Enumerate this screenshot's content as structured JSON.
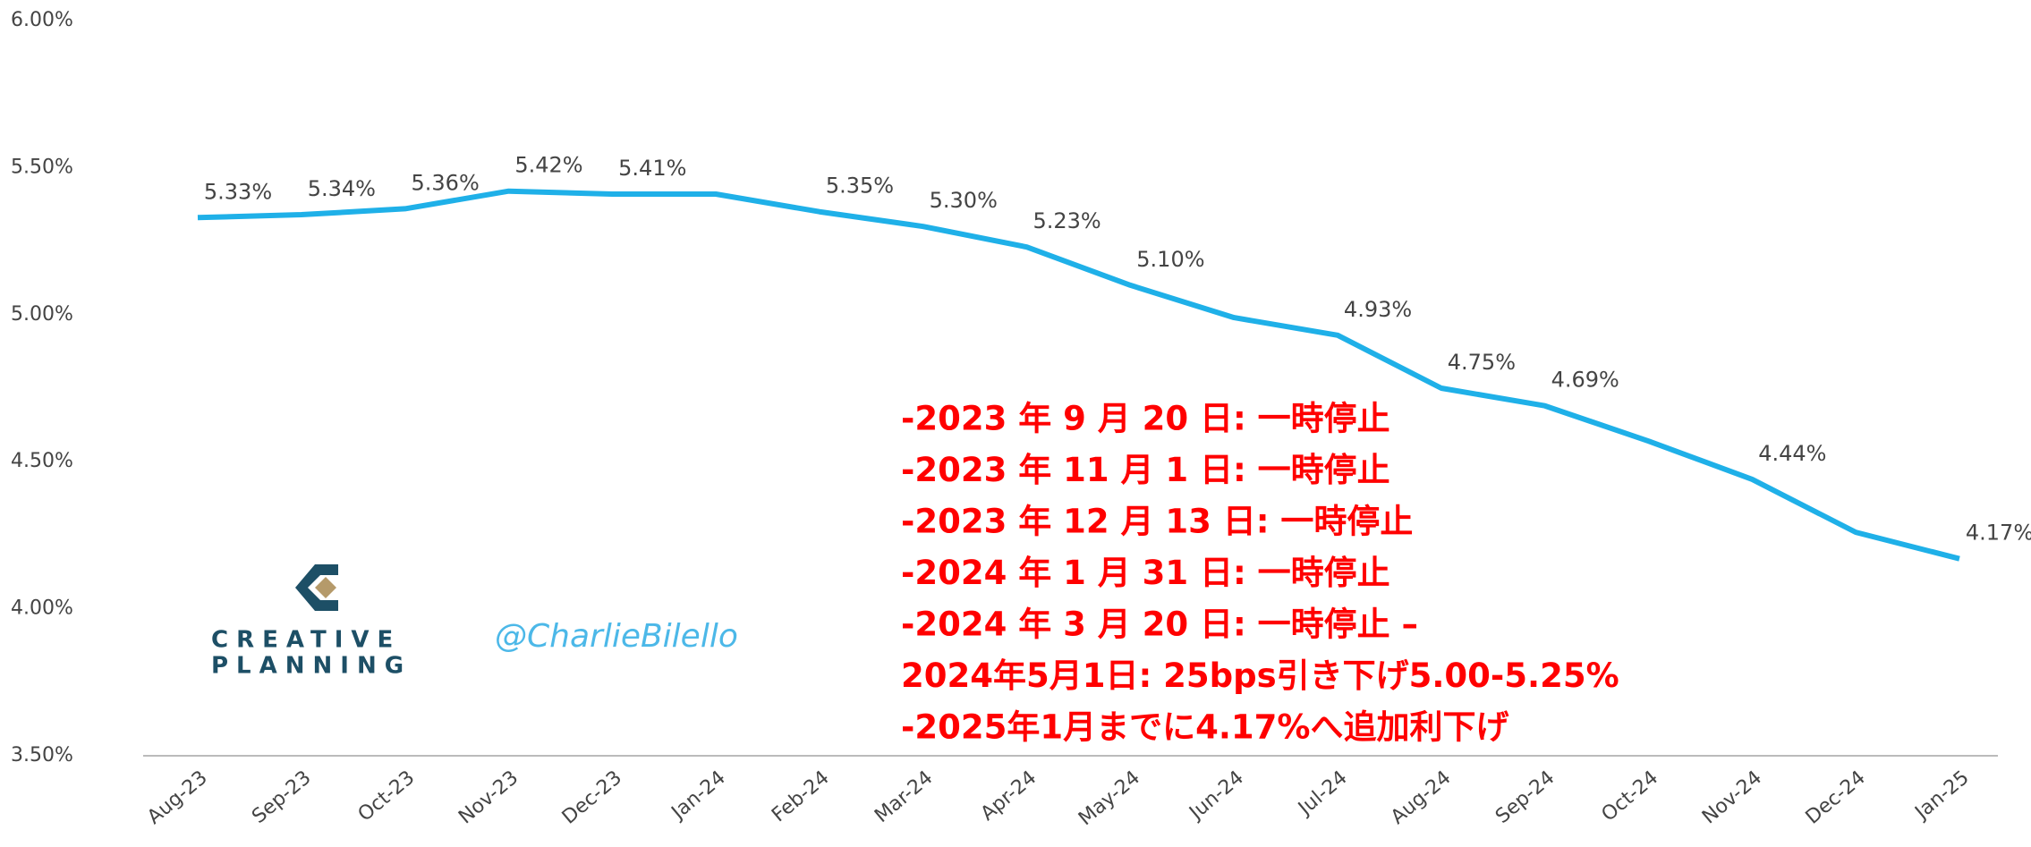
{
  "chart_data": {
    "type": "line",
    "categories": [
      "Aug-23",
      "Sep-23",
      "Oct-23",
      "Nov-23",
      "Dec-23",
      "Jan-24",
      "Feb-24",
      "Mar-24",
      "Apr-24",
      "May-24",
      "Jun-24",
      "Jul-24",
      "Aug-24",
      "Sep-24",
      "Oct-24",
      "Nov-24",
      "Dec-24",
      "Jan-25"
    ],
    "values": [
      5.33,
      5.34,
      5.36,
      5.42,
      5.41,
      5.41,
      5.35,
      5.3,
      5.23,
      5.1,
      4.99,
      4.93,
      4.75,
      4.69,
      4.57,
      4.44,
      4.26,
      4.17
    ],
    "value_labels": [
      "5.33%",
      "5.34%",
      "5.36%",
      "5.42%",
      "5.41%",
      null,
      "5.35%",
      "5.30%",
      "5.23%",
      "5.10%",
      null,
      "4.93%",
      "4.75%",
      "4.69%",
      null,
      "4.44%",
      null,
      "4.17%"
    ],
    "color": "#1fb0e8",
    "ylim": [
      3.5,
      6.0
    ],
    "yticks": [
      {
        "value": 3.5,
        "label": "3.50%"
      },
      {
        "value": 4.0,
        "label": "4.00%"
      },
      {
        "value": 4.5,
        "label": "4.50%"
      },
      {
        "value": 5.0,
        "label": "5.00%"
      },
      {
        "value": 5.5,
        "label": "5.50%"
      },
      {
        "value": 6.0,
        "label": "6.00%"
      }
    ],
    "grid": false,
    "annotations": [
      "-2023 年 9 月 20 日: 一時停止",
      "-2023 年 11 月 1 日: 一時停止",
      "-2023 年 12 月 13 日: 一時停止",
      "-2024 年 1 月 31 日: 一時停止",
      "-2024 年 3 月 20 日: 一時停止 –",
      "2024年5月1日: 25bps引き下げ5.00-5.25%",
      "-2025年1月までに4.17%へ追加利下げ"
    ],
    "logo_lines": [
      "CREATIVE",
      "PLANNING"
    ],
    "watermark": "@CharlieBilello"
  }
}
